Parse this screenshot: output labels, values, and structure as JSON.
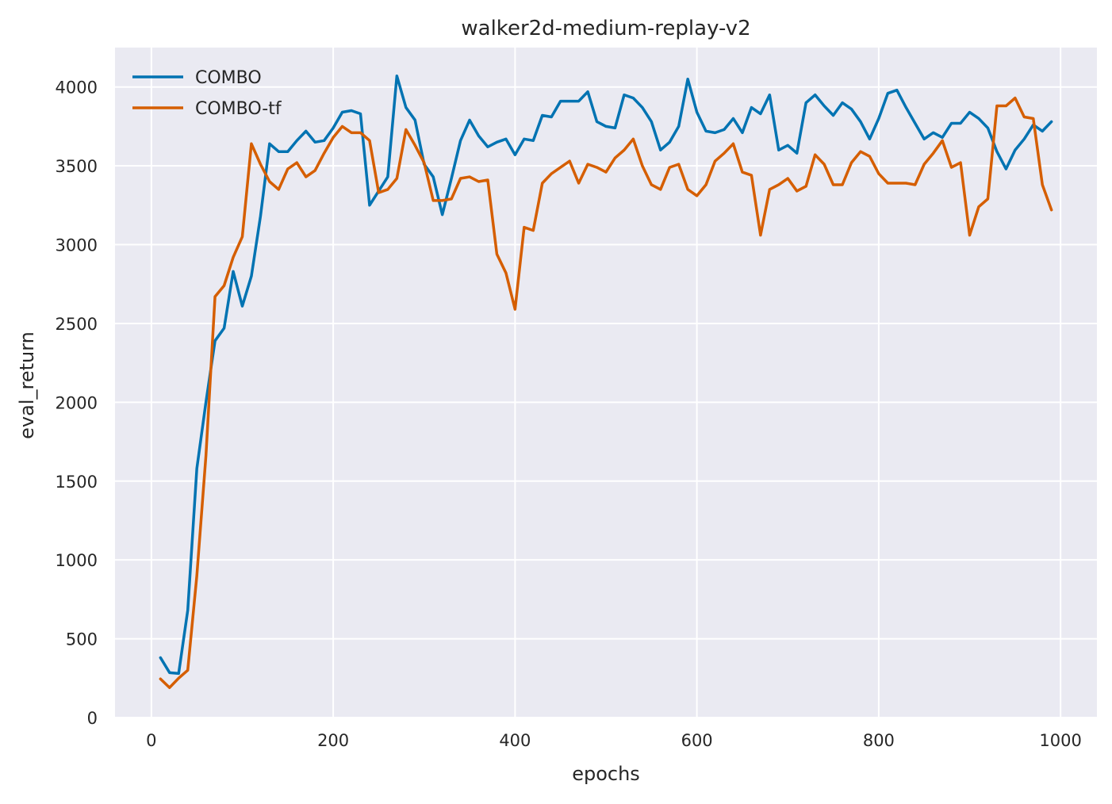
{
  "chart_data": {
    "type": "line",
    "title": "walker2d-medium-replay-v2",
    "xlabel": "epochs",
    "ylabel": "eval_return",
    "xlim": [
      -40,
      1040
    ],
    "ylim": [
      0,
      4250
    ],
    "xticks": [
      0,
      200,
      400,
      600,
      800,
      1000
    ],
    "yticks": [
      0,
      500,
      1000,
      1500,
      2000,
      2500,
      3000,
      3500,
      4000
    ],
    "grid": true,
    "legend_position": "top-left",
    "x": [
      10,
      20,
      30,
      40,
      50,
      60,
      70,
      80,
      90,
      100,
      110,
      120,
      130,
      140,
      150,
      160,
      170,
      180,
      190,
      200,
      210,
      220,
      230,
      240,
      250,
      260,
      270,
      280,
      290,
      300,
      310,
      320,
      330,
      340,
      350,
      360,
      370,
      380,
      390,
      400,
      410,
      420,
      430,
      440,
      450,
      460,
      470,
      480,
      490,
      500,
      510,
      520,
      530,
      540,
      550,
      560,
      570,
      580,
      590,
      600,
      610,
      620,
      630,
      640,
      650,
      660,
      670,
      680,
      690,
      700,
      710,
      720,
      730,
      740,
      750,
      760,
      770,
      780,
      790,
      800,
      810,
      820,
      830,
      840,
      850,
      860,
      870,
      880,
      890,
      900,
      910,
      920,
      930,
      940,
      950,
      960,
      970,
      980,
      990
    ],
    "series": [
      {
        "name": "COMBO",
        "color": "#0173b2",
        "values": [
          380,
          285,
          280,
          680,
          1580,
          2000,
          2390,
          2470,
          2830,
          2610,
          2800,
          3180,
          3640,
          3590,
          3590,
          3660,
          3720,
          3650,
          3660,
          3740,
          3840,
          3850,
          3830,
          3250,
          3340,
          3430,
          4070,
          3870,
          3790,
          3510,
          3430,
          3190,
          3420,
          3660,
          3790,
          3690,
          3620,
          3650,
          3670,
          3570,
          3670,
          3660,
          3820,
          3810,
          3910,
          3910,
          3910,
          3970,
          3780,
          3750,
          3740,
          3950,
          3930,
          3870,
          3780,
          3600,
          3650,
          3750,
          4050,
          3840,
          3720,
          3710,
          3730,
          3800,
          3710,
          3870,
          3830,
          3950,
          3600,
          3630,
          3580,
          3900,
          3950,
          3880,
          3820,
          3900,
          3860,
          3780,
          3670,
          3800,
          3960,
          3980,
          3870,
          3770,
          3670,
          3710,
          3680,
          3770,
          3770,
          3840,
          3800,
          3740,
          3590,
          3480,
          3600,
          3670,
          3760,
          3720,
          3780
        ]
      },
      {
        "name": "COMBO-tf",
        "color": "#d55e00",
        "values": [
          245,
          190,
          250,
          300,
          900,
          1660,
          2670,
          2740,
          2920,
          3050,
          3640,
          3510,
          3400,
          3350,
          3480,
          3520,
          3430,
          3470,
          3580,
          3680,
          3750,
          3710,
          3710,
          3660,
          3330,
          3350,
          3420,
          3730,
          3630,
          3520,
          3280,
          3280,
          3290,
          3420,
          3430,
          3400,
          3410,
          2940,
          2820,
          2590,
          3110,
          3090,
          3390,
          3450,
          3490,
          3530,
          3390,
          3510,
          3490,
          3460,
          3550,
          3600,
          3670,
          3500,
          3380,
          3350,
          3490,
          3510,
          3350,
          3310,
          3380,
          3530,
          3580,
          3640,
          3460,
          3440,
          3060,
          3350,
          3380,
          3420,
          3340,
          3370,
          3570,
          3510,
          3380,
          3380,
          3520,
          3590,
          3560,
          3450,
          3390,
          3390,
          3390,
          3380,
          3510,
          3580,
          3660,
          3490,
          3520,
          3060,
          3240,
          3290,
          3880,
          3880,
          3930,
          3810,
          3800,
          3380,
          3220
        ]
      }
    ]
  }
}
